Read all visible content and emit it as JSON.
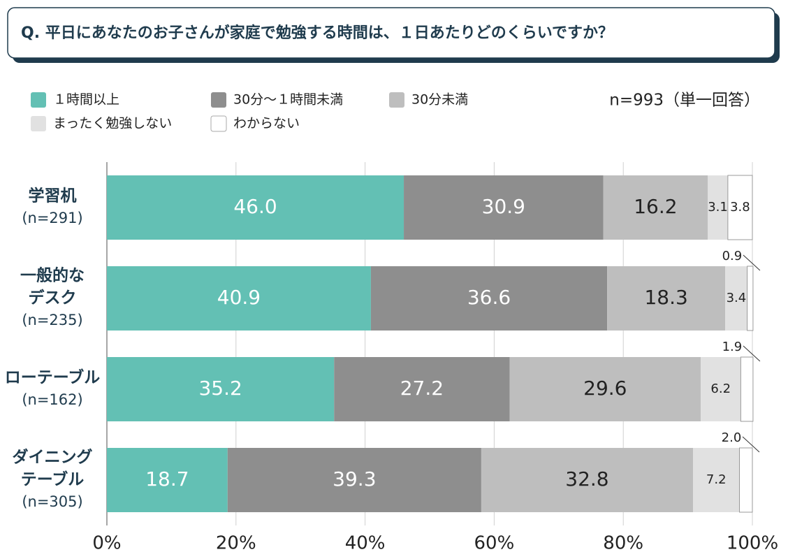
{
  "chart_data": {
    "type": "stacked-bar-horizontal",
    "title": "Q. 平日にあなたのお子さんが家庭で勉強する時間は、１日あたりどのくらいですか？",
    "note": "n=993（単一回答）",
    "categories": [
      [
        "学習机"
      ],
      [
        "一般的な",
        "デスク"
      ],
      [
        "ローテーブル"
      ],
      [
        "ダイニング",
        "テーブル"
      ]
    ],
    "category_n": [
      "(n=291)",
      "(n=235)",
      "(n=162)",
      "(n=305)"
    ],
    "series": [
      {
        "name": "１時間以上",
        "color": "#63c0b4",
        "values": [
          46.0,
          40.9,
          35.2,
          18.7
        ],
        "value_labels": [
          "46.0",
          "40.9",
          "35.2",
          "18.7"
        ]
      },
      {
        "name": "30分～１時間未満",
        "color": "#8e8e8e",
        "values": [
          30.9,
          36.6,
          27.2,
          39.3
        ],
        "value_labels": [
          "30.9",
          "36.6",
          "27.2",
          "39.3"
        ]
      },
      {
        "name": "30分未満",
        "color": "#bebebe",
        "values": [
          16.2,
          18.3,
          29.6,
          32.8
        ],
        "value_labels": [
          "16.2",
          "18.3",
          "29.6",
          "32.8"
        ]
      },
      {
        "name": "まったく勉強しない",
        "color": "#e1e1e1",
        "values": [
          3.1,
          3.4,
          6.2,
          7.2
        ],
        "value_labels": [
          "3.1",
          "3.4",
          "6.2",
          "7.2"
        ]
      },
      {
        "name": "わからない",
        "color": "#ffffff",
        "values": [
          3.8,
          0.9,
          1.9,
          2.0
        ],
        "value_labels": [
          "3.8",
          "0.9",
          "1.9",
          "2.0"
        ]
      }
    ],
    "xlim": [
      0,
      100
    ],
    "xticks": [
      {
        "value": 0,
        "label": "0%"
      },
      {
        "value": 20,
        "label": "20%"
      },
      {
        "value": 40,
        "label": "40%"
      },
      {
        "value": 60,
        "label": "60%"
      },
      {
        "value": 80,
        "label": "80%"
      },
      {
        "value": 100,
        "label": "100%"
      }
    ],
    "grid": true
  }
}
